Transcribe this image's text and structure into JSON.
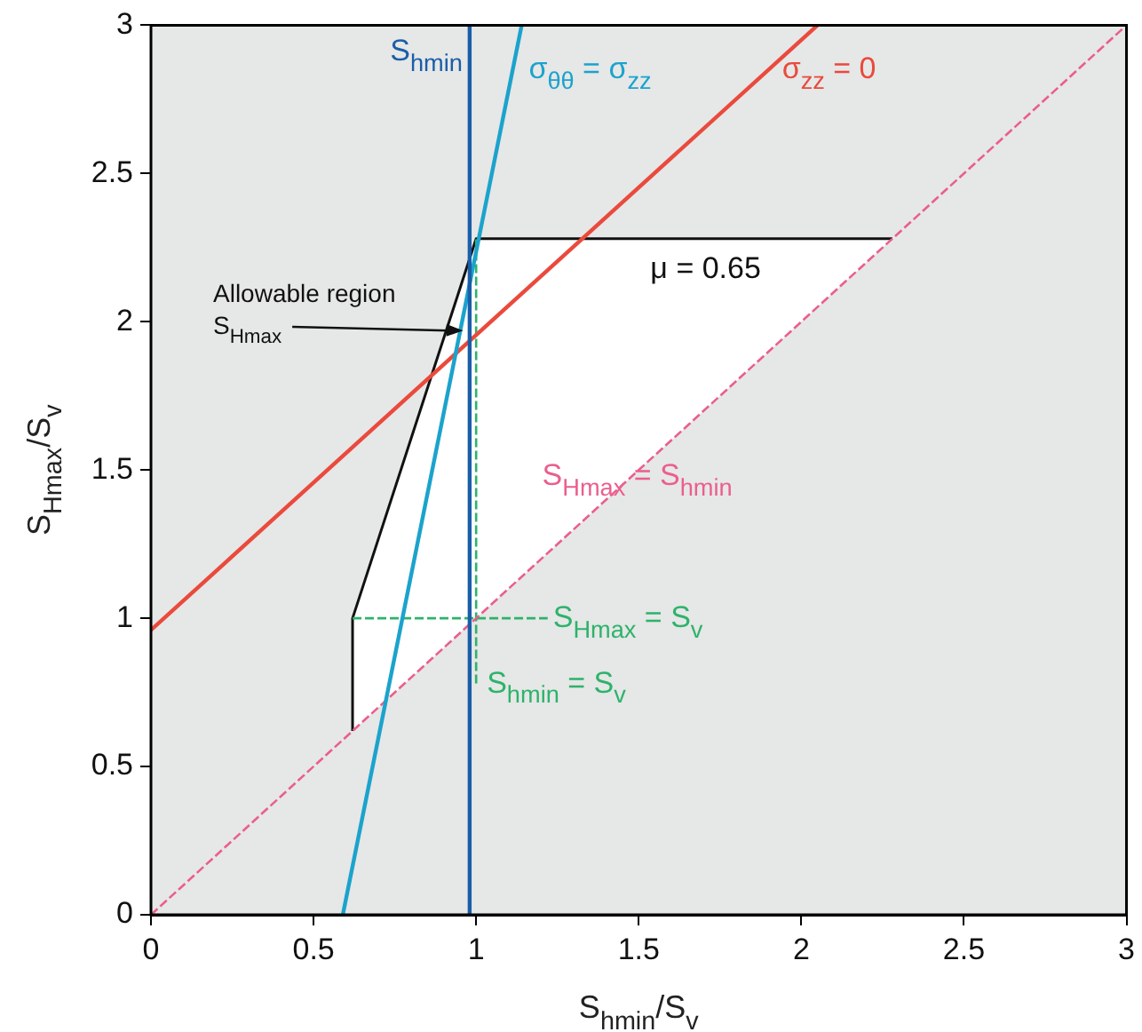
{
  "chart_data": {
    "type": "line",
    "xlabel": "S$_{hmin}$/S$_{v}$",
    "ylabel": "S$_{Hmax}$/S$_{v}$",
    "xlim": [
      0,
      3
    ],
    "ylim": [
      0,
      3
    ],
    "xticks": [
      0,
      0.5,
      1,
      1.5,
      2,
      2.5,
      3
    ],
    "yticks": [
      0,
      0.5,
      1,
      1.5,
      2,
      2.5,
      3
    ],
    "legend": false,
    "marker": "none",
    "series": [
      {
        "name": "S$_{hmin}$",
        "color": "#1a5ea8",
        "x": [
          0.98,
          0.98
        ],
        "values": [
          0,
          3
        ]
      },
      {
        "name": "σ$_{θθ}$ = σ$_{zz}$",
        "color": "#1ba3cc",
        "x": [
          0.59,
          1.14
        ],
        "values": [
          0,
          3
        ]
      },
      {
        "name": "σ$_{zz}$ = 0",
        "color": "#ea4a3c",
        "x": [
          0,
          2.05
        ],
        "values": [
          0.96,
          3
        ]
      },
      {
        "name": "S$_{Hmax}$ = S$_{hmin}$",
        "color": "#ea5f8c",
        "x": [
          0,
          3
        ],
        "values": [
          0,
          3
        ],
        "line_style": "dashed"
      },
      {
        "name": "S$_{Hmax}$ = S$_{v}$",
        "color": "#2db36a",
        "x": [
          0.62,
          1.22
        ],
        "values": [
          1,
          1
        ],
        "line_style": "dashed"
      },
      {
        "name": "S$_{hmin}$ = S$_{v}$",
        "color": "#2db36a",
        "x": [
          1.0,
          1.0
        ],
        "values": [
          0.78,
          2.28
        ],
        "line_style": "dashed"
      },
      {
        "name": "μ = 0.65",
        "color": "#111111",
        "x": [
          0.62,
          0.62,
          1.0,
          2.28
        ],
        "values": [
          0.62,
          1,
          2.28,
          2.28
        ]
      }
    ],
    "annotations": [
      {
        "text": "Allowable region\nS$_{Hmax}$",
        "x": 0.96,
        "y": 1.97
      }
    ]
  }
}
